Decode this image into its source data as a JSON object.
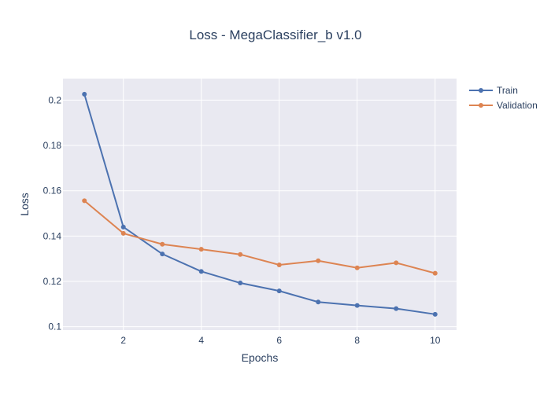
{
  "chart_data": {
    "type": "line",
    "title": "Loss - MegaClassifier_b v1.0",
    "xlabel": "Epochs",
    "ylabel": "Loss",
    "x": [
      1,
      2,
      3,
      4,
      5,
      6,
      7,
      8,
      9,
      10
    ],
    "xlim": [
      0.45,
      10.55
    ],
    "ylim": [
      0.0985,
      0.2095
    ],
    "xticks": [
      2,
      4,
      6,
      8,
      10
    ],
    "yticks": [
      0.1,
      0.12,
      0.14,
      0.16,
      0.18,
      0.2
    ],
    "ytick_labels": [
      "0.1",
      "0.12",
      "0.14",
      "0.16",
      "0.18",
      "0.2"
    ],
    "grid": true,
    "legend_position": "top-right",
    "series": [
      {
        "name": "Train",
        "color": "#4c72b0",
        "values": [
          0.2026,
          0.144,
          0.1321,
          0.1244,
          0.1193,
          0.1158,
          0.1109,
          0.1094,
          0.108,
          0.1055
        ]
      },
      {
        "name": "Validation",
        "color": "#dd8452",
        "values": [
          0.1556,
          0.1412,
          0.1364,
          0.1342,
          0.1319,
          0.1273,
          0.1291,
          0.126,
          0.1282,
          0.1236
        ]
      }
    ]
  }
}
